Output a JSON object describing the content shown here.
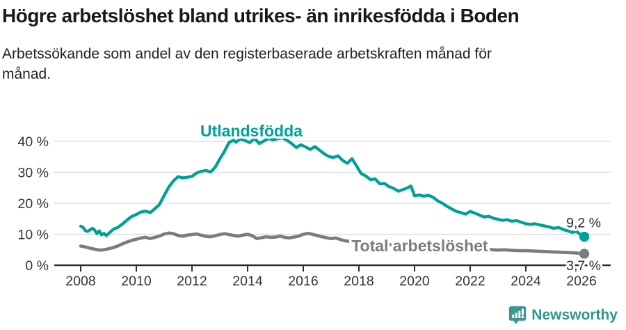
{
  "header": {
    "title": "Högre arbetslöshet bland utrikes- än inrikesfödda i Boden",
    "subtitle_lines": [
      "Arbetssökande som andel av den registerbaserade arbetskraften månad för",
      "månad."
    ]
  },
  "footer": {
    "brand": "Newsworthy",
    "logo_icon": "newsworthy-pin-barchart-icon",
    "brand_color": "#2f968f"
  },
  "chart_data": {
    "type": "line",
    "title": "Högre arbetslöshet bland utrikes- än inrikesfödda i Boden",
    "subtitle": "Arbetssökande som andel av den registerbaserade arbetskraften månad för månad.",
    "unit": "%",
    "grid": "horizontal",
    "legend_position": "inline-labels",
    "xlim": [
      2007.05,
      2027.05
    ],
    "ylim": [
      0,
      45
    ],
    "x_ticks": [
      2008,
      2010,
      2012,
      2014,
      2016,
      2018,
      2020,
      2022,
      2024,
      2026
    ],
    "y_ticks": [
      {
        "value": 0,
        "label": "0 %"
      },
      {
        "value": 10,
        "label": "10 %"
      },
      {
        "value": 20,
        "label": "20 %"
      },
      {
        "value": 30,
        "label": "30 %"
      },
      {
        "value": 40,
        "label": "40 %"
      }
    ],
    "colors": {
      "grid": "#d9d9d9",
      "axis": "#2d2d2d",
      "tick_label": "#333333",
      "value_label": "#2b2b2b"
    },
    "series": [
      {
        "name": "Utlandsfödda",
        "color": "#00a096",
        "end_label": "9,2 %",
        "label_pos": {
          "x": 2012.3,
          "y": 41.6
        },
        "points": [
          [
            2008.0,
            12.6
          ],
          [
            2008.08,
            12.3
          ],
          [
            2008.17,
            11.2
          ],
          [
            2008.25,
            10.9
          ],
          [
            2008.33,
            11.4
          ],
          [
            2008.42,
            11.9
          ],
          [
            2008.5,
            11.4
          ],
          [
            2008.58,
            10.2
          ],
          [
            2008.67,
            11.1
          ],
          [
            2008.75,
            9.8
          ],
          [
            2008.83,
            10.3
          ],
          [
            2008.92,
            9.6
          ],
          [
            2009.0,
            10.2
          ],
          [
            2009.17,
            11.6
          ],
          [
            2009.33,
            12.2
          ],
          [
            2009.5,
            13.3
          ],
          [
            2009.67,
            14.6
          ],
          [
            2009.83,
            15.7
          ],
          [
            2010.0,
            16.4
          ],
          [
            2010.17,
            17.2
          ],
          [
            2010.33,
            17.5
          ],
          [
            2010.5,
            17.0
          ],
          [
            2010.67,
            18.3
          ],
          [
            2010.83,
            19.6
          ],
          [
            2011.0,
            22.5
          ],
          [
            2011.17,
            25.3
          ],
          [
            2011.33,
            27.2
          ],
          [
            2011.5,
            28.6
          ],
          [
            2011.67,
            28.2
          ],
          [
            2011.83,
            28.4
          ],
          [
            2012.0,
            28.7
          ],
          [
            2012.17,
            29.8
          ],
          [
            2012.33,
            30.3
          ],
          [
            2012.5,
            30.6
          ],
          [
            2012.67,
            30.1
          ],
          [
            2012.83,
            31.6
          ],
          [
            2013.0,
            34.3
          ],
          [
            2013.17,
            36.8
          ],
          [
            2013.33,
            39.6
          ],
          [
            2013.5,
            40.4
          ],
          [
            2013.58,
            39.7
          ],
          [
            2013.75,
            40.8
          ],
          [
            2013.92,
            40.2
          ],
          [
            2014.08,
            39.6
          ],
          [
            2014.25,
            40.9
          ],
          [
            2014.42,
            39.3
          ],
          [
            2014.58,
            40.1
          ],
          [
            2014.75,
            40.9
          ],
          [
            2014.92,
            40.4
          ],
          [
            2015.08,
            40.9
          ],
          [
            2015.25,
            41.1
          ],
          [
            2015.42,
            40.3
          ],
          [
            2015.58,
            39.3
          ],
          [
            2015.75,
            38.0
          ],
          [
            2015.92,
            38.9
          ],
          [
            2016.08,
            38.2
          ],
          [
            2016.25,
            37.4
          ],
          [
            2016.42,
            38.3
          ],
          [
            2016.58,
            37.2
          ],
          [
            2016.75,
            36.0
          ],
          [
            2016.92,
            35.1
          ],
          [
            2017.08,
            34.8
          ],
          [
            2017.25,
            35.3
          ],
          [
            2017.42,
            33.8
          ],
          [
            2017.58,
            32.9
          ],
          [
            2017.75,
            34.4
          ],
          [
            2017.92,
            32.0
          ],
          [
            2018.08,
            29.6
          ],
          [
            2018.25,
            28.8
          ],
          [
            2018.42,
            27.6
          ],
          [
            2018.58,
            27.9
          ],
          [
            2018.75,
            26.3
          ],
          [
            2018.92,
            26.4
          ],
          [
            2019.08,
            25.4
          ],
          [
            2019.25,
            24.8
          ],
          [
            2019.42,
            23.9
          ],
          [
            2019.58,
            24.4
          ],
          [
            2019.75,
            25.0
          ],
          [
            2019.87,
            25.6
          ],
          [
            2020.0,
            22.4
          ],
          [
            2020.17,
            22.7
          ],
          [
            2020.33,
            22.3
          ],
          [
            2020.5,
            22.6
          ],
          [
            2020.67,
            21.9
          ],
          [
            2020.83,
            20.8
          ],
          [
            2021.0,
            20.0
          ],
          [
            2021.17,
            19.0
          ],
          [
            2021.33,
            18.2
          ],
          [
            2021.5,
            17.4
          ],
          [
            2021.67,
            17.0
          ],
          [
            2021.83,
            16.5
          ],
          [
            2022.0,
            17.4
          ],
          [
            2022.17,
            16.8
          ],
          [
            2022.33,
            16.2
          ],
          [
            2022.5,
            15.6
          ],
          [
            2022.67,
            15.8
          ],
          [
            2022.83,
            15.2
          ],
          [
            2023.0,
            14.8
          ],
          [
            2023.17,
            14.5
          ],
          [
            2023.33,
            14.7
          ],
          [
            2023.5,
            14.2
          ],
          [
            2023.67,
            14.4
          ],
          [
            2023.83,
            13.9
          ],
          [
            2024.0,
            13.4
          ],
          [
            2024.17,
            13.2
          ],
          [
            2024.33,
            13.4
          ],
          [
            2024.5,
            13.0
          ],
          [
            2024.67,
            12.7
          ],
          [
            2024.83,
            12.4
          ],
          [
            2025.0,
            11.9
          ],
          [
            2025.17,
            12.2
          ],
          [
            2025.33,
            11.6
          ],
          [
            2025.5,
            11.1
          ],
          [
            2025.67,
            10.6
          ],
          [
            2025.83,
            10.9
          ],
          [
            2025.92,
            10.2
          ],
          [
            2026.1,
            9.2
          ]
        ]
      },
      {
        "name": "Total arbetslöshet",
        "color": "#7b7c7e",
        "end_label": "3,7 %",
        "label_pos": {
          "x": 2017.73,
          "y": 4.55
        },
        "points": [
          [
            2008.0,
            6.2
          ],
          [
            2008.17,
            5.9
          ],
          [
            2008.33,
            5.5
          ],
          [
            2008.5,
            5.2
          ],
          [
            2008.67,
            4.9
          ],
          [
            2008.83,
            5.0
          ],
          [
            2009.0,
            5.3
          ],
          [
            2009.17,
            5.7
          ],
          [
            2009.33,
            6.2
          ],
          [
            2009.5,
            6.9
          ],
          [
            2009.67,
            7.5
          ],
          [
            2009.83,
            8.0
          ],
          [
            2010.0,
            8.4
          ],
          [
            2010.17,
            8.8
          ],
          [
            2010.33,
            9.0
          ],
          [
            2010.5,
            8.6
          ],
          [
            2010.67,
            9.0
          ],
          [
            2010.83,
            9.4
          ],
          [
            2011.0,
            10.1
          ],
          [
            2011.17,
            10.4
          ],
          [
            2011.33,
            10.2
          ],
          [
            2011.5,
            9.6
          ],
          [
            2011.67,
            9.4
          ],
          [
            2011.83,
            9.7
          ],
          [
            2012.0,
            9.9
          ],
          [
            2012.17,
            10.1
          ],
          [
            2012.33,
            9.7
          ],
          [
            2012.5,
            9.3
          ],
          [
            2012.67,
            9.2
          ],
          [
            2012.83,
            9.5
          ],
          [
            2013.0,
            9.9
          ],
          [
            2013.17,
            10.2
          ],
          [
            2013.33,
            9.9
          ],
          [
            2013.5,
            9.6
          ],
          [
            2013.67,
            9.4
          ],
          [
            2013.83,
            9.7
          ],
          [
            2014.0,
            10.0
          ],
          [
            2014.17,
            9.5
          ],
          [
            2014.33,
            8.6
          ],
          [
            2014.5,
            8.9
          ],
          [
            2014.67,
            9.2
          ],
          [
            2014.83,
            9.0
          ],
          [
            2015.0,
            9.1
          ],
          [
            2015.17,
            9.4
          ],
          [
            2015.33,
            9.0
          ],
          [
            2015.5,
            8.8
          ],
          [
            2015.67,
            9.1
          ],
          [
            2015.83,
            9.4
          ],
          [
            2016.0,
            10.0
          ],
          [
            2016.17,
            10.3
          ],
          [
            2016.33,
            10.0
          ],
          [
            2016.5,
            9.6
          ],
          [
            2016.67,
            9.2
          ],
          [
            2016.83,
            8.9
          ],
          [
            2017.0,
            8.6
          ],
          [
            2017.17,
            8.8
          ],
          [
            2017.33,
            8.3
          ],
          [
            2017.5,
            7.9
          ],
          [
            2017.67,
            7.7
          ],
          [
            2018.0,
            7.4
          ],
          [
            2018.5,
            7.1
          ],
          [
            2019.0,
            6.7
          ],
          [
            2019.5,
            6.4
          ],
          [
            2020.0,
            6.2
          ],
          [
            2020.5,
            6.0
          ],
          [
            2021.0,
            5.7
          ],
          [
            2021.5,
            5.5
          ],
          [
            2022.0,
            5.3
          ],
          [
            2022.5,
            5.2
          ],
          [
            2022.67,
            5.1
          ],
          [
            2022.83,
            5.0
          ],
          [
            2023.0,
            4.9
          ],
          [
            2023.25,
            5.0
          ],
          [
            2023.5,
            4.8
          ],
          [
            2023.75,
            4.7
          ],
          [
            2024.0,
            4.7
          ],
          [
            2024.25,
            4.6
          ],
          [
            2024.5,
            4.5
          ],
          [
            2024.75,
            4.4
          ],
          [
            2025.0,
            4.3
          ],
          [
            2025.25,
            4.2
          ],
          [
            2025.5,
            4.1
          ],
          [
            2025.75,
            4.0
          ],
          [
            2026.1,
            3.7
          ]
        ]
      }
    ]
  }
}
